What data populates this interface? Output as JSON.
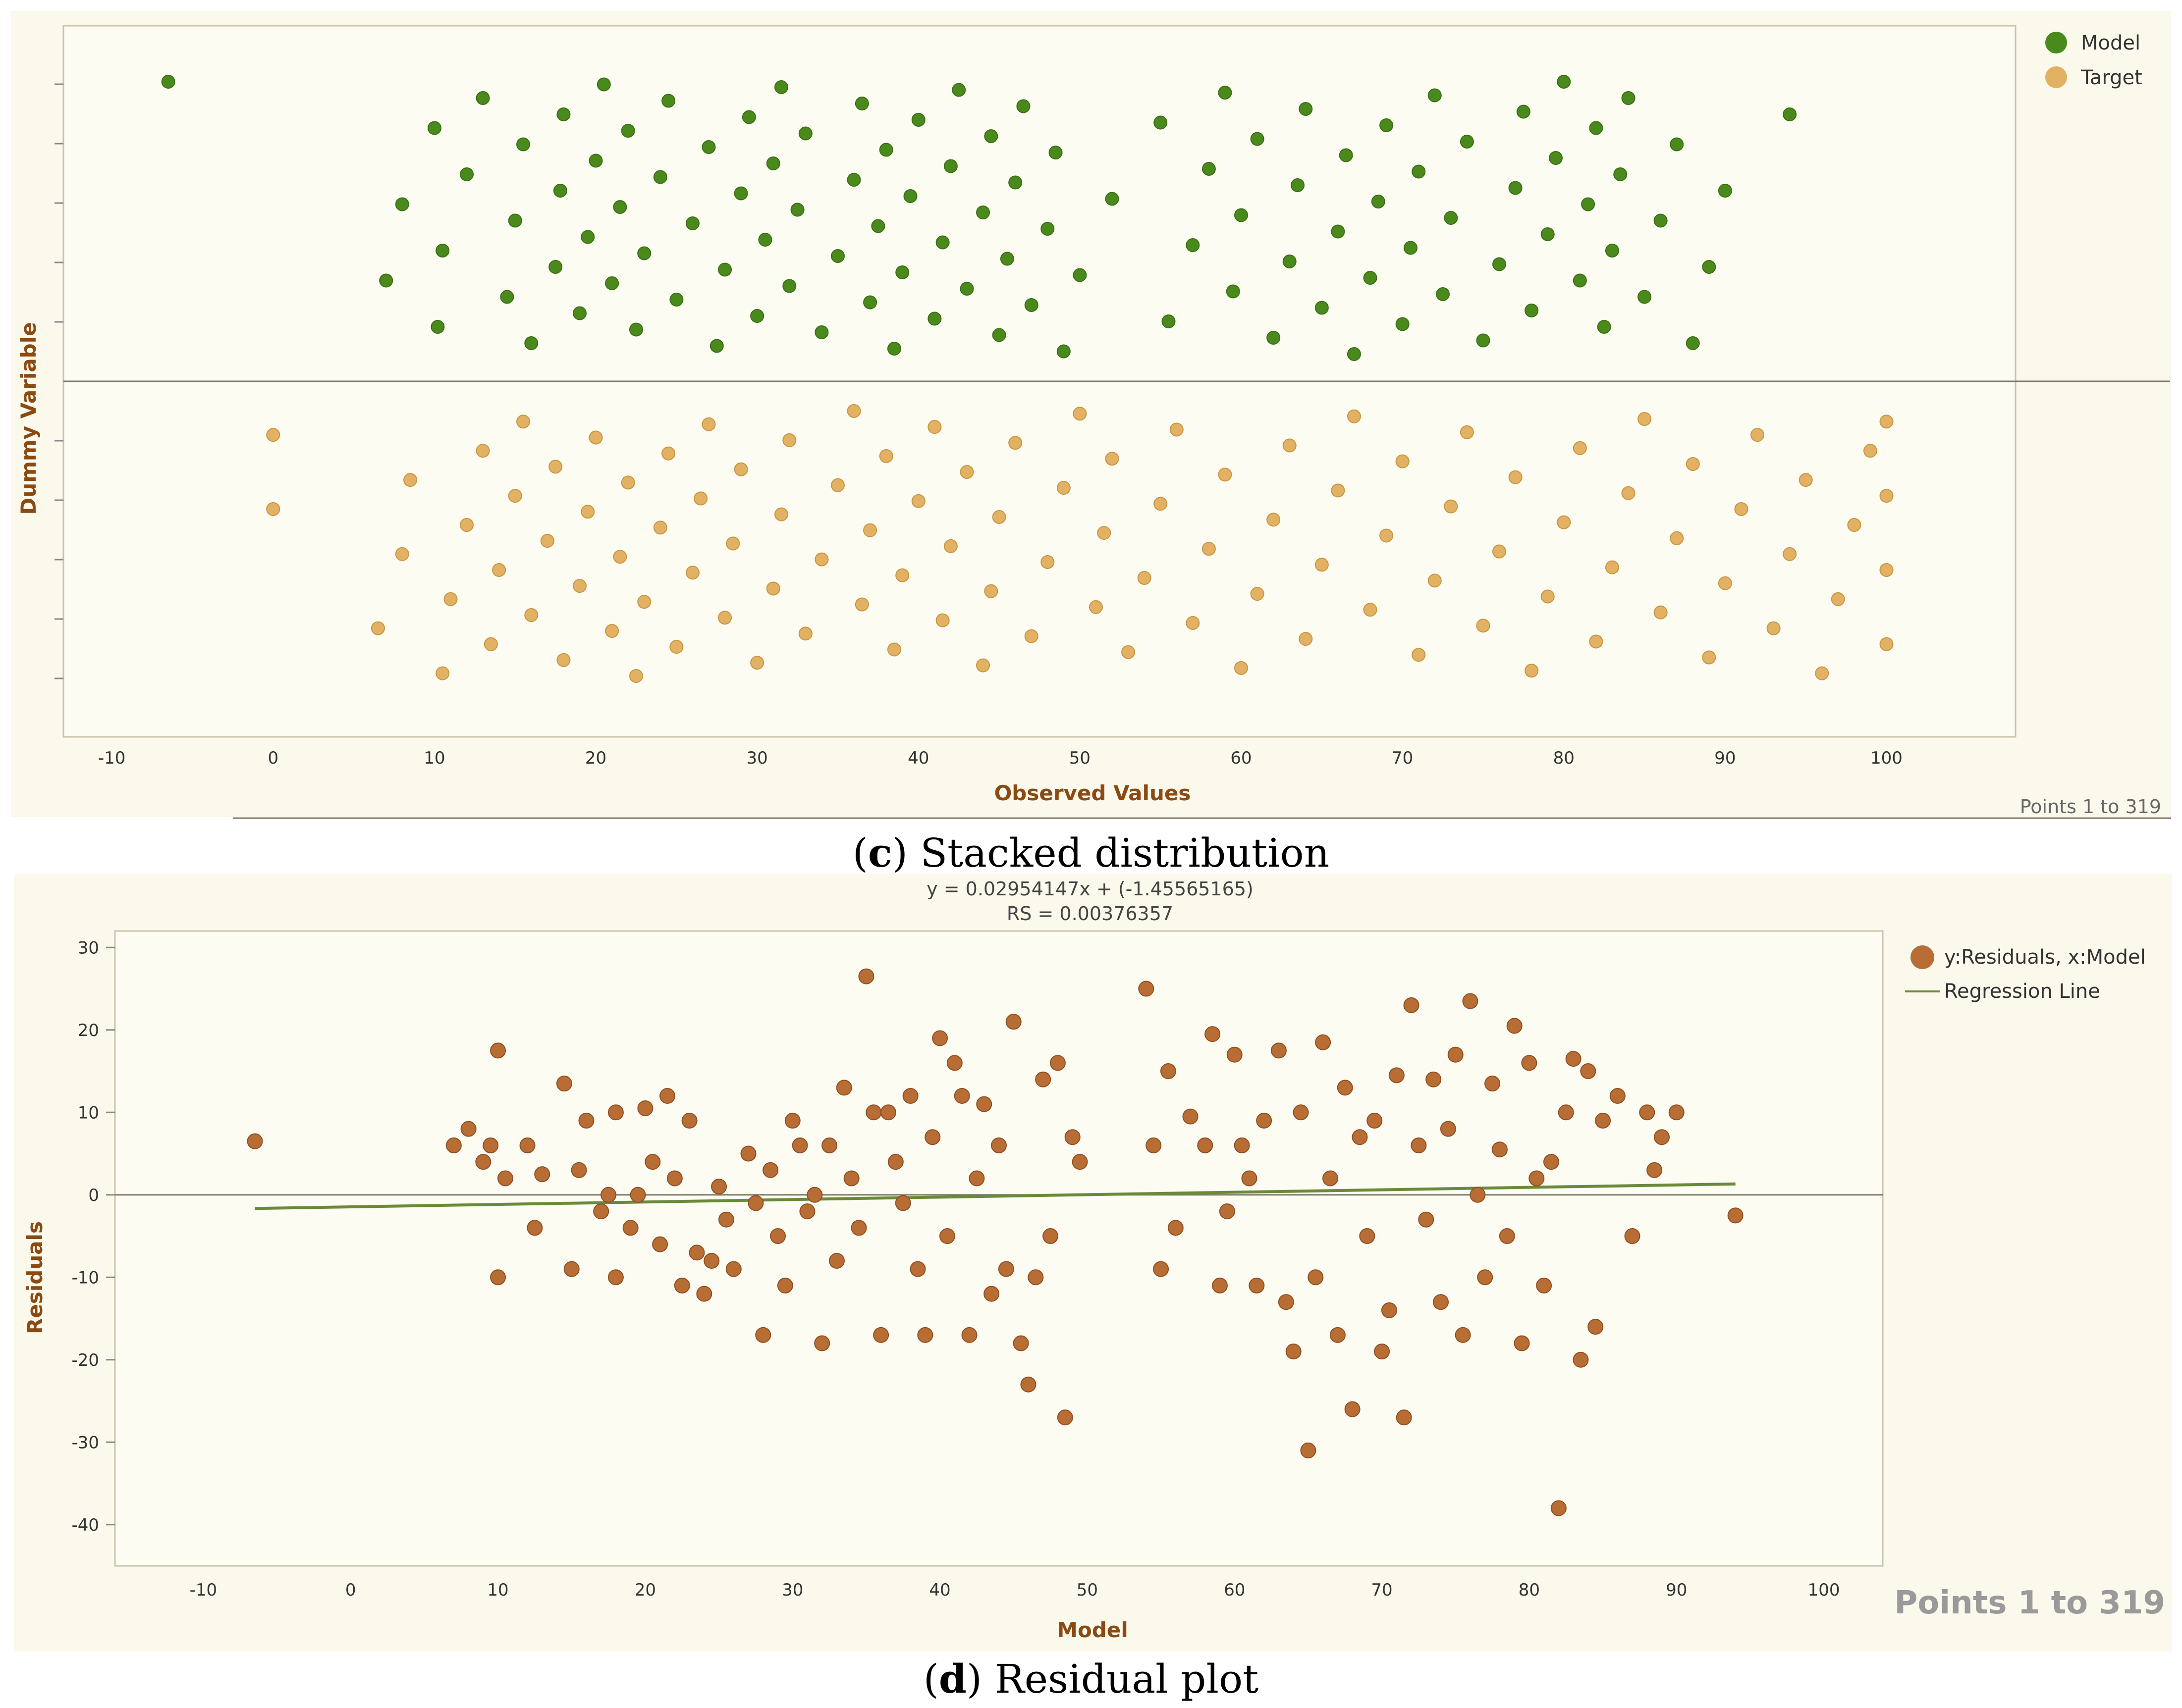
{
  "chart_data": [
    {
      "type": "scatter",
      "title": "",
      "xlabel": "Observed Values",
      "ylabel": "Dummy Variable",
      "xlim": [
        -13,
        108
      ],
      "x_ticks": [
        -10,
        0,
        10,
        20,
        30,
        40,
        50,
        60,
        70,
        80,
        90,
        100
      ],
      "legend": [
        "Model",
        "Target"
      ],
      "legend_position": "top-right",
      "footer": "Points 1 to 319",
      "caption_letter": "c",
      "caption_text": " Stacked distribution",
      "series": [
        {
          "name": "Model",
          "color": "#4a8a1c",
          "band": "upper",
          "values": [
            -6.5,
            7,
            8,
            10,
            10.2,
            10.5,
            12,
            13,
            14.5,
            15,
            15.5,
            16,
            17.5,
            17.8,
            18,
            19,
            19.5,
            20,
            20.5,
            21,
            21.5,
            22,
            22.5,
            23,
            24,
            24.5,
            25,
            26,
            27,
            27.5,
            28,
            29,
            29.5,
            30,
            30.5,
            31,
            31.5,
            32,
            32.5,
            33,
            34,
            35,
            36,
            36.5,
            37,
            37.5,
            38,
            38.5,
            39,
            39.5,
            40,
            41,
            41.5,
            42,
            42.5,
            43,
            44,
            44.5,
            45,
            45.5,
            46,
            46.5,
            47,
            48,
            48.5,
            49,
            50,
            52,
            55,
            55.5,
            57,
            58,
            59,
            59.5,
            60,
            61,
            62,
            63,
            63.5,
            64,
            65,
            66,
            66.5,
            67,
            68,
            68.5,
            69,
            70,
            70.5,
            71,
            72,
            72.5,
            73,
            74,
            75,
            76,
            77,
            77.5,
            78,
            79,
            79.5,
            80,
            81,
            81.5,
            82,
            82.5,
            83,
            83.5,
            84,
            85,
            86,
            87,
            88,
            89,
            90,
            94
          ]
        },
        {
          "name": "Target",
          "color": "#e2b163",
          "band": "lower",
          "values": [
            0,
            0,
            6.5,
            8,
            8.5,
            10.5,
            11,
            12,
            13,
            13.5,
            14,
            15,
            15.5,
            16,
            17,
            17.5,
            18,
            19,
            19.5,
            20,
            21,
            21.5,
            22,
            22.5,
            23,
            24,
            24.5,
            25,
            26,
            26.5,
            27,
            28,
            28.5,
            29,
            30,
            31,
            31.5,
            32,
            33,
            34,
            35,
            36,
            36.5,
            37,
            38,
            38.5,
            39,
            40,
            41,
            41.5,
            42,
            43,
            44,
            44.5,
            45,
            46,
            47,
            48,
            49,
            50,
            51,
            51.5,
            52,
            53,
            54,
            55,
            56,
            57,
            58,
            59,
            60,
            61,
            62,
            63,
            64,
            65,
            66,
            67,
            68,
            69,
            70,
            71,
            72,
            73,
            74,
            75,
            76,
            77,
            78,
            79,
            80,
            81,
            82,
            83,
            84,
            85,
            86,
            87,
            88,
            89,
            90,
            91,
            92,
            93,
            94,
            95,
            96,
            97,
            98,
            99,
            100,
            100,
            100,
            100
          ]
        }
      ]
    },
    {
      "type": "scatter",
      "title": "y = 0.02954147x + (-1.45565165)",
      "subtitle": "RS = 0.00376357",
      "xlabel": "Model",
      "ylabel": "Residuals",
      "xlim": [
        -16,
        104
      ],
      "ylim": [
        -45,
        32
      ],
      "x_ticks": [
        -10,
        0,
        10,
        20,
        30,
        40,
        50,
        60,
        70,
        80,
        90,
        100
      ],
      "y_ticks": [
        30,
        20,
        10,
        0,
        -10,
        -20,
        -30,
        -40
      ],
      "legend": [
        "y:Residuals, x:Model",
        "Regression Line"
      ],
      "legend_position": "top-right",
      "footer": "Points 1 to 319",
      "caption_letter": "d",
      "caption_text": " Residual plot",
      "regression": {
        "slope": 0.02954147,
        "intercept": -1.45565165,
        "x_range": [
          -6.5,
          94
        ],
        "color": "#6a8a3a"
      },
      "series": [
        {
          "name": "y:Residuals, x:Model",
          "color": "#b86d35",
          "points": [
            [
              -6.5,
              6.5
            ],
            [
              7,
              6
            ],
            [
              8,
              8
            ],
            [
              9,
              4
            ],
            [
              9.5,
              6
            ],
            [
              10,
              17.5
            ],
            [
              10,
              -10
            ],
            [
              10.5,
              2
            ],
            [
              12,
              6
            ],
            [
              12.5,
              -4
            ],
            [
              13,
              2.5
            ],
            [
              14.5,
              13.5
            ],
            [
              15,
              -9
            ],
            [
              15.5,
              3
            ],
            [
              16,
              9
            ],
            [
              17,
              -2
            ],
            [
              17.5,
              0
            ],
            [
              18,
              10
            ],
            [
              18,
              -10
            ],
            [
              19,
              -4
            ],
            [
              19.5,
              0
            ],
            [
              20,
              10.5
            ],
            [
              20.5,
              4
            ],
            [
              21,
              -6
            ],
            [
              21.5,
              12
            ],
            [
              22,
              2
            ],
            [
              22.5,
              -11
            ],
            [
              23,
              9
            ],
            [
              23.5,
              -7
            ],
            [
              24,
              -12
            ],
            [
              24.5,
              -8
            ],
            [
              25,
              1
            ],
            [
              25.5,
              -3
            ],
            [
              26,
              -9
            ],
            [
              27,
              5
            ],
            [
              27.5,
              -1
            ],
            [
              28,
              -17
            ],
            [
              28.5,
              3
            ],
            [
              29,
              -5
            ],
            [
              29.5,
              -11
            ],
            [
              30,
              9
            ],
            [
              30.5,
              6
            ],
            [
              31,
              -2
            ],
            [
              31.5,
              0
            ],
            [
              32,
              -18
            ],
            [
              32.5,
              6
            ],
            [
              33,
              -8
            ],
            [
              33.5,
              13
            ],
            [
              34,
              2
            ],
            [
              34.5,
              -4
            ],
            [
              35,
              26.5
            ],
            [
              35.5,
              10
            ],
            [
              36,
              -17
            ],
            [
              36.5,
              10
            ],
            [
              37,
              4
            ],
            [
              37.5,
              -1
            ],
            [
              38,
              12
            ],
            [
              38.5,
              -9
            ],
            [
              39,
              -17
            ],
            [
              39.5,
              7
            ],
            [
              40,
              19
            ],
            [
              40.5,
              -5
            ],
            [
              41,
              16
            ],
            [
              41.5,
              12
            ],
            [
              42,
              -17
            ],
            [
              42.5,
              2
            ],
            [
              43,
              11
            ],
            [
              43.5,
              -12
            ],
            [
              44,
              6
            ],
            [
              44.5,
              -9
            ],
            [
              45,
              21
            ],
            [
              45.5,
              -18
            ],
            [
              46,
              -23
            ],
            [
              46.5,
              -10
            ],
            [
              47,
              14
            ],
            [
              47.5,
              -5
            ],
            [
              48,
              16
            ],
            [
              48.5,
              -27
            ],
            [
              49,
              7
            ],
            [
              49.5,
              4
            ],
            [
              54,
              25
            ],
            [
              54.5,
              6
            ],
            [
              55,
              -9
            ],
            [
              55.5,
              15
            ],
            [
              56,
              -4
            ],
            [
              57,
              9.5
            ],
            [
              58,
              6
            ],
            [
              58.5,
              19.5
            ],
            [
              59,
              -11
            ],
            [
              59.5,
              -2
            ],
            [
              60,
              17
            ],
            [
              60.5,
              6
            ],
            [
              61,
              2
            ],
            [
              61.5,
              -11
            ],
            [
              62,
              9
            ],
            [
              63,
              17.5
            ],
            [
              63.5,
              -13
            ],
            [
              64,
              -19
            ],
            [
              64.5,
              10
            ],
            [
              65,
              -31
            ],
            [
              65.5,
              -10
            ],
            [
              66,
              18.5
            ],
            [
              66.5,
              2
            ],
            [
              67,
              -17
            ],
            [
              67.5,
              13
            ],
            [
              68,
              -26
            ],
            [
              68.5,
              7
            ],
            [
              69,
              -5
            ],
            [
              69.5,
              9
            ],
            [
              70,
              -19
            ],
            [
              70.5,
              -14
            ],
            [
              71,
              14.5
            ],
            [
              71.5,
              -27
            ],
            [
              72,
              23
            ],
            [
              72.5,
              6
            ],
            [
              73,
              -3
            ],
            [
              73.5,
              14
            ],
            [
              74,
              -13
            ],
            [
              74.5,
              8
            ],
            [
              75,
              17
            ],
            [
              75.5,
              -17
            ],
            [
              76,
              23.5
            ],
            [
              76.5,
              0
            ],
            [
              77,
              -10
            ],
            [
              77.5,
              13.5
            ],
            [
              78,
              5.5
            ],
            [
              78.5,
              -5
            ],
            [
              79,
              20.5
            ],
            [
              79.5,
              -18
            ],
            [
              80,
              16
            ],
            [
              80.5,
              2
            ],
            [
              81,
              -11
            ],
            [
              81.5,
              4
            ],
            [
              82,
              -38
            ],
            [
              82.5,
              10
            ],
            [
              83,
              16.5
            ],
            [
              83.5,
              -20
            ],
            [
              84,
              15
            ],
            [
              84.5,
              -16
            ],
            [
              85,
              9
            ],
            [
              86,
              12
            ],
            [
              87,
              -5
            ],
            [
              88,
              10
            ],
            [
              88.5,
              3
            ],
            [
              89,
              7
            ],
            [
              90,
              10
            ],
            [
              94,
              -2.5
            ]
          ]
        }
      ]
    }
  ]
}
